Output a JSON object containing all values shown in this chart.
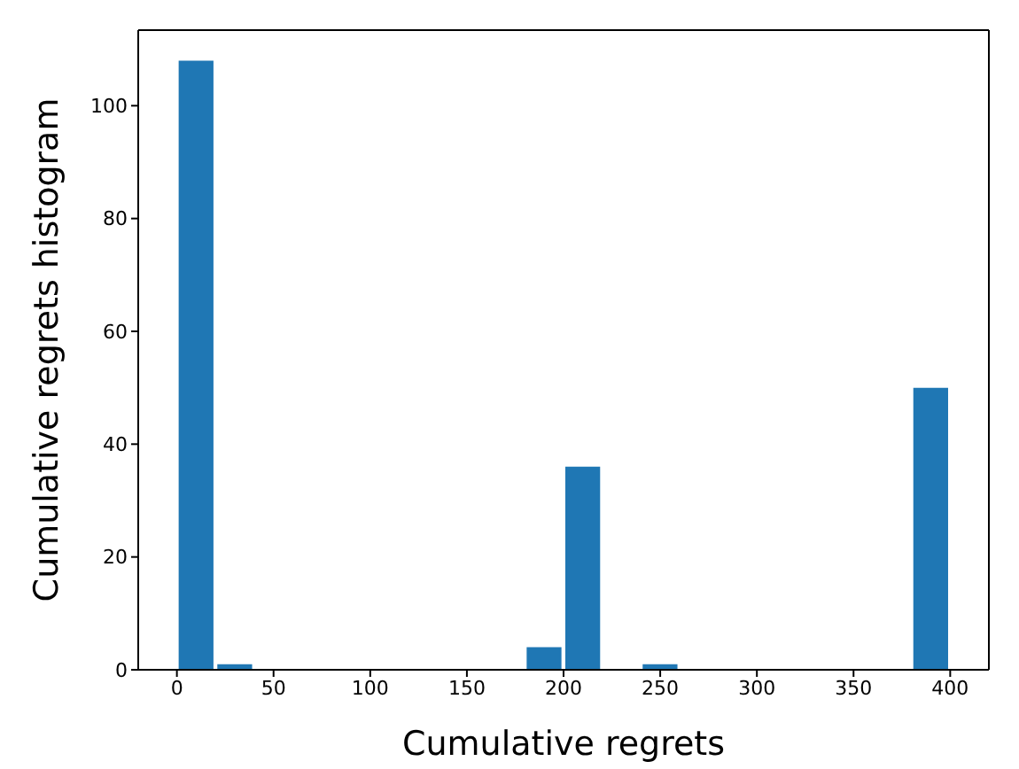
{
  "chart_data": {
    "type": "histogram",
    "xlabel": "Cumulative regrets",
    "ylabel": "Cumulative regrets histogram",
    "color": "#1f77b4",
    "bins": [
      0,
      20,
      40,
      60,
      80,
      100,
      120,
      140,
      160,
      180,
      200,
      220,
      240,
      260,
      280,
      300,
      320,
      340,
      360,
      380,
      400
    ],
    "values": [
      108,
      1,
      0,
      0,
      0,
      0,
      0,
      0,
      0,
      4,
      36,
      0,
      1,
      0,
      0,
      0,
      0,
      0,
      0,
      50
    ],
    "xlim": [
      -20,
      420
    ],
    "xticks": [
      0,
      50,
      100,
      150,
      200,
      250,
      300,
      350,
      400
    ],
    "ylim": [
      0,
      113.4
    ],
    "yticks": [
      0,
      20,
      40,
      60,
      80,
      100
    ],
    "grid": false
  }
}
